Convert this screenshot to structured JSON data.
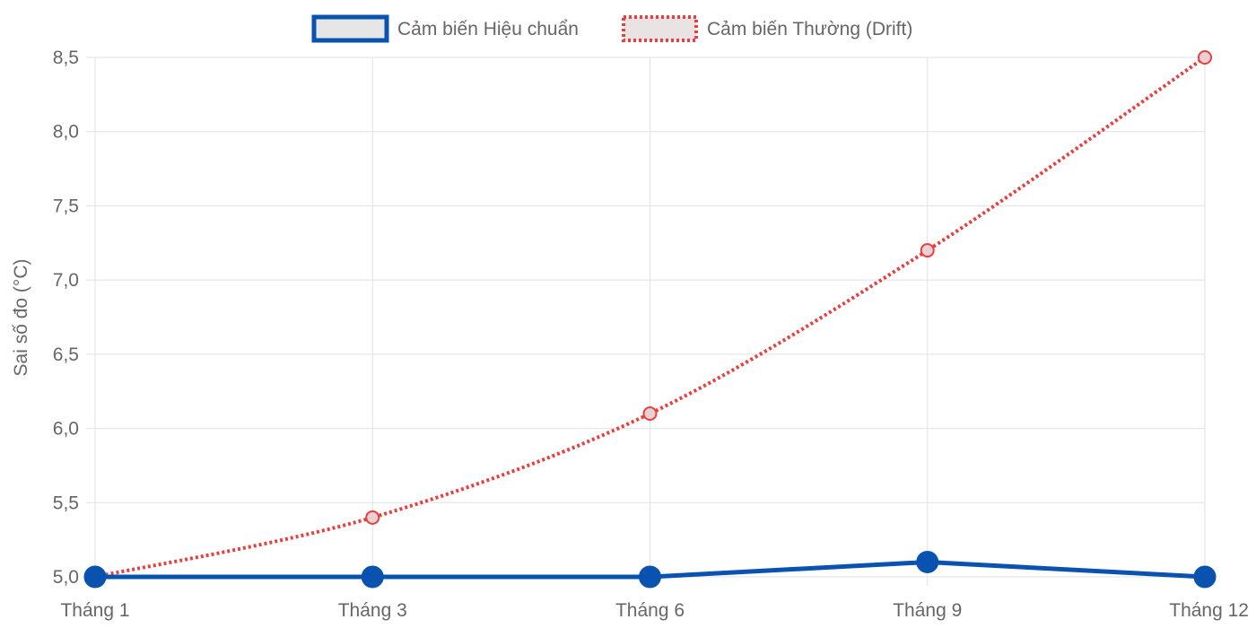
{
  "chart_data": {
    "type": "line",
    "categories": [
      "Tháng 1",
      "Tháng 3",
      "Tháng 6",
      "Tháng 9",
      "Tháng 12"
    ],
    "series": [
      {
        "name": "Cảm biến Hiệu chuẩn",
        "values": [
          5.0,
          5.0,
          5.0,
          5.1,
          5.0
        ],
        "color": "#0a52b0",
        "style": "solid"
      },
      {
        "name": "Cảm biến Thường (Drift)",
        "values": [
          5.0,
          5.4,
          6.1,
          7.2,
          8.5
        ],
        "color": "#e8403f",
        "style": "dotted"
      }
    ],
    "ylabel": "Sai số đo (°C)",
    "xlabel": "",
    "ylim": [
      5.0,
      8.5
    ],
    "yticks": [
      "5,0",
      "5,5",
      "6,0",
      "6,5",
      "7,0",
      "7,5",
      "8,0",
      "8,5"
    ],
    "grid": true,
    "legend_position": "top-center"
  }
}
